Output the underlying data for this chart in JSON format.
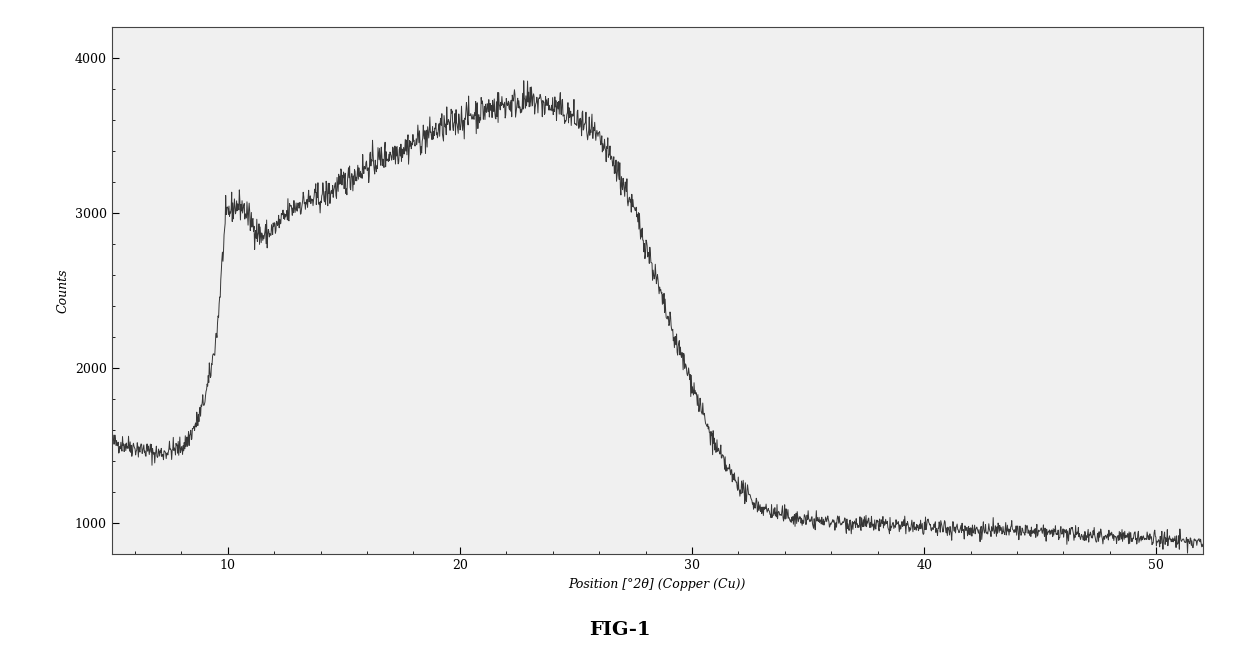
{
  "title": "FIG-1",
  "ylabel": "Counts",
  "xlabel": "Position [°2θ] (Copper (Cu))",
  "xlim": [
    5,
    52
  ],
  "ylim": [
    800,
    4200
  ],
  "yticks": [
    1000,
    2000,
    3000,
    4000
  ],
  "xticks": [
    10,
    20,
    30,
    40,
    50
  ],
  "line_color": "#222222",
  "bg_color": "#f0f0f0",
  "noise_amplitude": 50,
  "seed": 42,
  "curve_points_x": [
    5.0,
    5.5,
    6.0,
    6.5,
    7.0,
    7.5,
    8.0,
    8.5,
    9.0,
    9.5,
    10.0,
    10.5,
    11.0,
    11.5,
    12.0,
    13.0,
    14.0,
    15.0,
    16.0,
    17.0,
    18.0,
    19.0,
    20.0,
    21.0,
    22.0,
    23.0,
    24.0,
    25.0,
    26.0,
    27.0,
    28.0,
    29.0,
    30.0,
    31.0,
    32.0,
    33.0,
    34.0,
    35.0,
    36.0,
    37.0,
    38.0,
    39.0,
    40.0,
    42.0,
    44.0,
    46.0,
    48.0,
    50.0,
    52.0
  ],
  "curve_points_y": [
    1520,
    1510,
    1490,
    1470,
    1450,
    1470,
    1490,
    1600,
    1800,
    2200,
    3000,
    3050,
    2950,
    2850,
    2900,
    3050,
    3100,
    3200,
    3300,
    3380,
    3450,
    3530,
    3600,
    3660,
    3700,
    3720,
    3680,
    3600,
    3460,
    3200,
    2800,
    2300,
    1900,
    1500,
    1250,
    1100,
    1050,
    1020,
    1010,
    1000,
    990,
    980,
    975,
    960,
    950,
    935,
    920,
    900,
    870
  ]
}
